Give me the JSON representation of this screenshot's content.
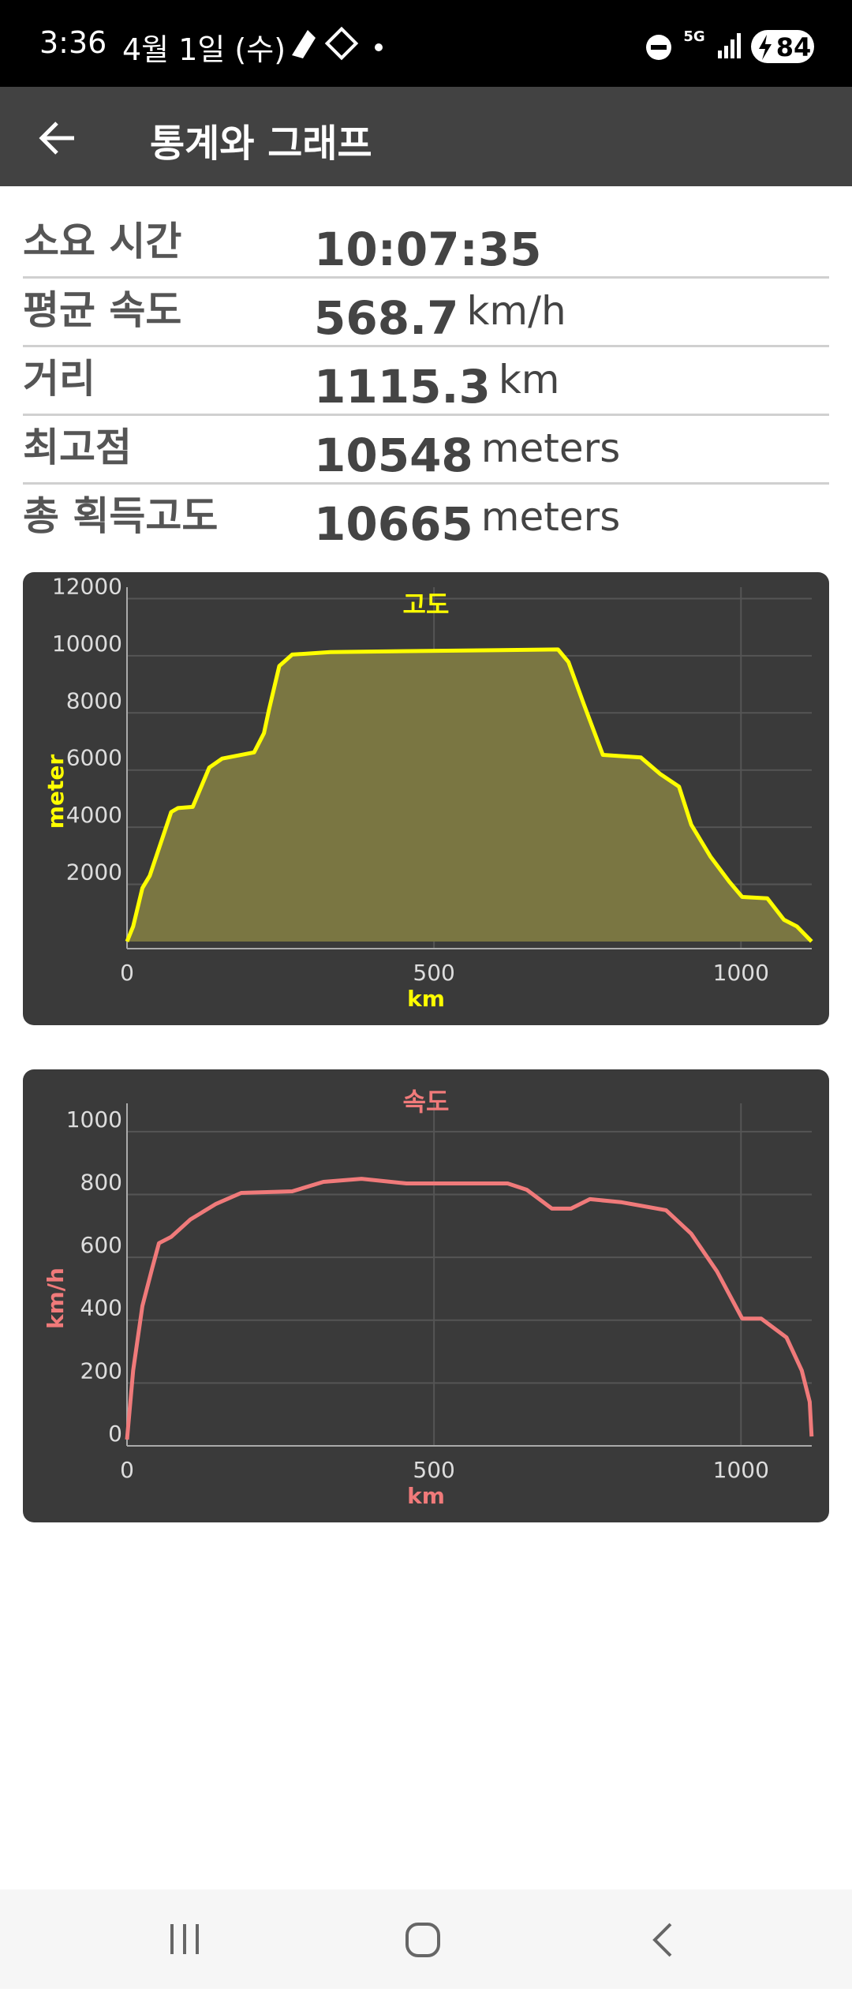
{
  "status_bar": {
    "time": "3:36",
    "date": "4월 1일 (수)",
    "network": "5G",
    "battery": "84"
  },
  "app_bar": {
    "title": "통계와 그래프"
  },
  "stats": [
    {
      "label": "소요 시간",
      "value": "10:07:35"
    },
    {
      "label": "평균 속도",
      "value": "568.7",
      "unit": "km/h"
    },
    {
      "label": "거리",
      "value": "1115.3",
      "unit": "km"
    },
    {
      "label": "최고점",
      "value": "10548",
      "unit": "meters"
    },
    {
      "label": "총 획득고도",
      "value": "10665",
      "unit": "meters"
    }
  ],
  "chart_data": [
    {
      "type": "area",
      "title": "고도",
      "xlabel": "km",
      "ylabel": "meter",
      "color": "#ffff00",
      "fill": "#7a7642",
      "grid": true,
      "x": [
        0,
        10,
        25,
        37,
        72,
        83,
        107,
        134,
        155,
        207,
        223,
        231,
        248,
        269,
        331,
        702,
        719,
        744,
        775,
        837,
        868,
        899,
        919,
        950,
        981,
        1002,
        1043,
        1070,
        1091,
        1115
      ],
      "values": [
        0,
        530,
        1870,
        2300,
        4530,
        4670,
        4710,
        6090,
        6400,
        6620,
        7290,
        8090,
        9640,
        10040,
        10130,
        10220,
        9780,
        8310,
        6530,
        6440,
        5870,
        5420,
        4090,
        2980,
        2090,
        1560,
        1510,
        760,
        530,
        0
      ],
      "xlim": [
        0,
        1115.3
      ],
      "xticks": [
        0,
        500,
        1000
      ],
      "ylim": [
        -250,
        12400
      ],
      "yticks": [
        2000,
        4000,
        6000,
        8000,
        10000,
        12000
      ]
    },
    {
      "type": "line",
      "title": "속도",
      "xlabel": "km",
      "ylabel": "km/h",
      "color": "#f07a7a",
      "grid": true,
      "x": [
        0,
        10,
        25,
        41,
        52,
        72,
        103,
        145,
        186,
        269,
        320,
        382,
        455,
        620,
        651,
        692,
        723,
        754,
        806,
        878,
        919,
        961,
        1002,
        1033,
        1074,
        1099,
        1112,
        1115
      ],
      "values": [
        20,
        240,
        445,
        565,
        645,
        665,
        720,
        770,
        805,
        810,
        840,
        850,
        835,
        835,
        815,
        755,
        755,
        785,
        775,
        750,
        675,
        555,
        405,
        405,
        345,
        240,
        140,
        30
      ],
      "xlim": [
        0,
        1115.3
      ],
      "xticks": [
        0,
        500,
        1000
      ],
      "ylim": [
        0,
        1090
      ],
      "yticks": [
        0,
        200,
        400,
        600,
        800,
        1000
      ]
    }
  ]
}
